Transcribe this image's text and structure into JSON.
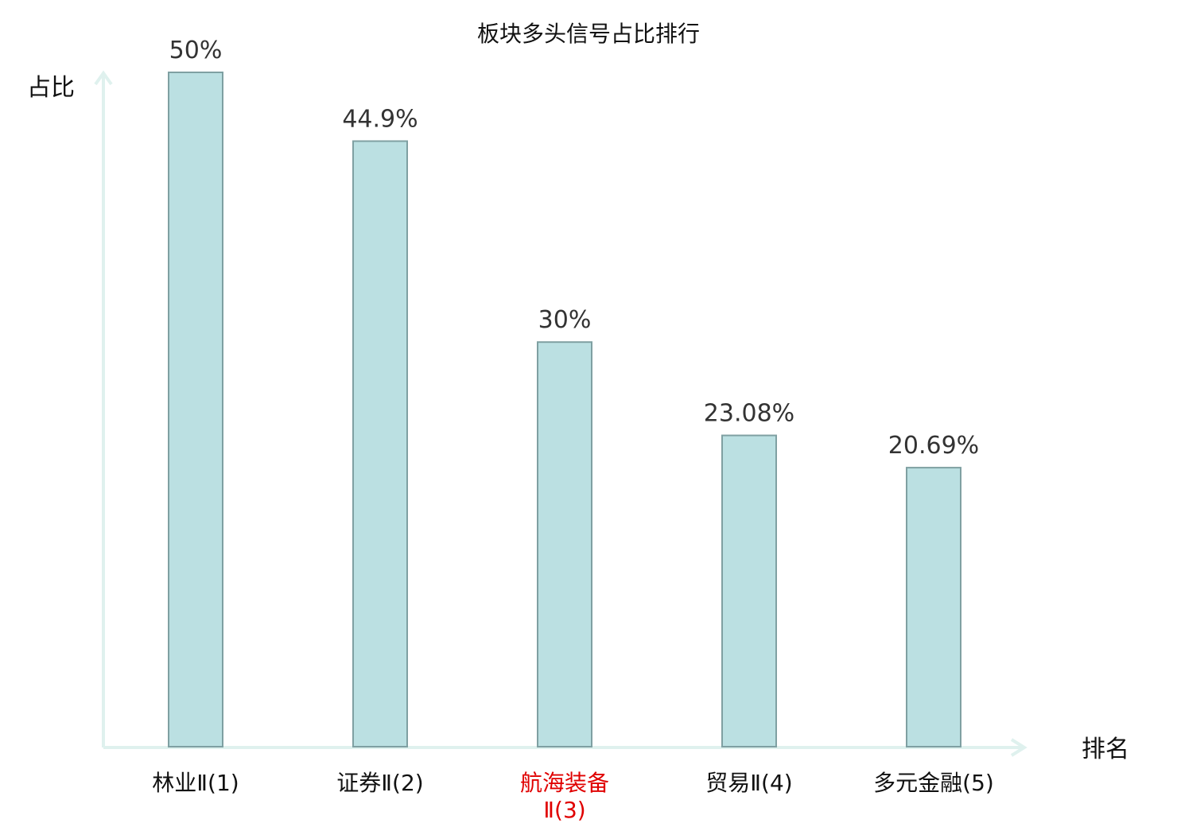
{
  "chart_data": {
    "type": "bar",
    "title": "板块多头信号占比排行",
    "xlabel": "排名",
    "ylabel": "占比",
    "categories": [
      {
        "lines": [
          "林业Ⅱ(1)"
        ],
        "highlight": false
      },
      {
        "lines": [
          "证券Ⅱ(2)"
        ],
        "highlight": false
      },
      {
        "lines": [
          "航海装备",
          "Ⅱ(3)"
        ],
        "highlight": true
      },
      {
        "lines": [
          "贸易Ⅱ(4)"
        ],
        "highlight": false
      },
      {
        "lines": [
          "多元金融(5)"
        ],
        "highlight": false
      }
    ],
    "values": [
      50,
      44.9,
      30,
      23.08,
      20.69
    ],
    "value_labels": [
      "50%",
      "44.9%",
      "30%",
      "23.08%",
      "20.69%"
    ],
    "ylim": [
      0,
      50
    ],
    "grid": false,
    "legend": "none"
  },
  "colors": {
    "bar_fill": "#bbe0e2",
    "bar_stroke": "#7fa0a2",
    "axis": "#dff1ee",
    "text": "#111111",
    "value_text": "#333333",
    "highlight_text": "#e00000"
  }
}
